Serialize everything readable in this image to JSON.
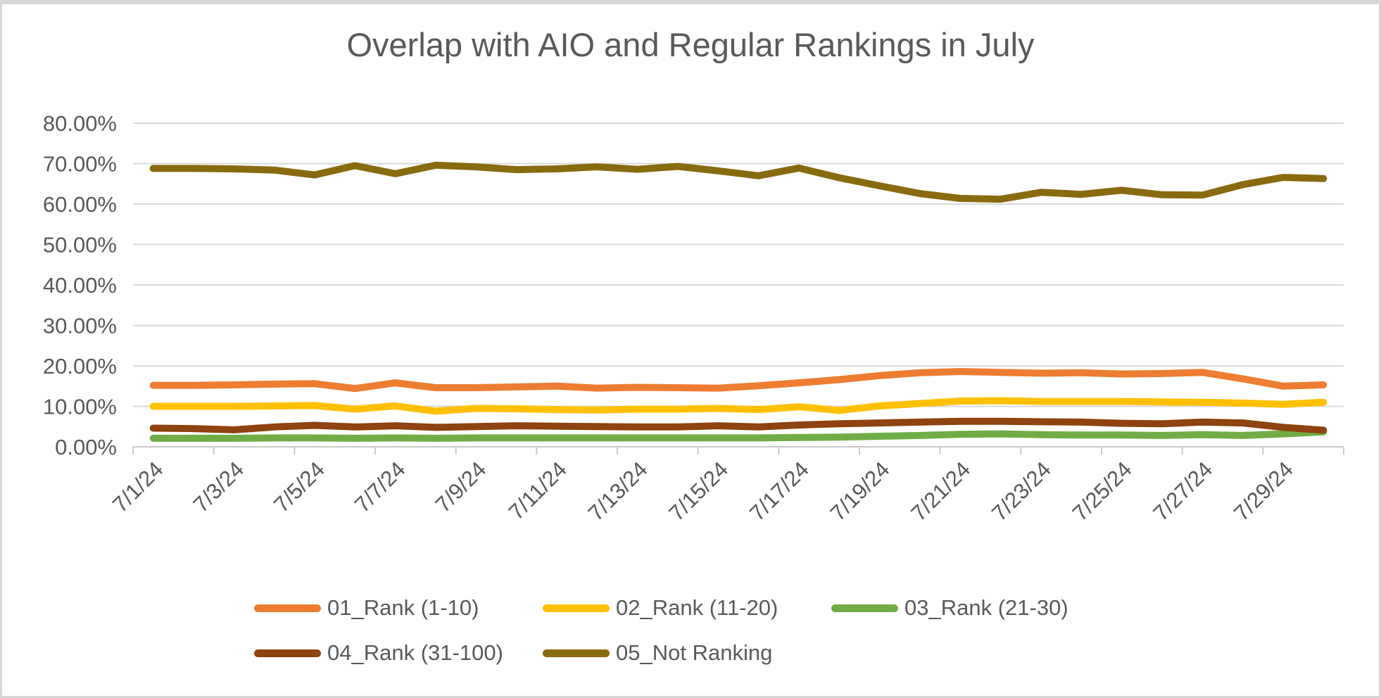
{
  "title": "Overlap with AIO and Regular Rankings in July",
  "chart_data": {
    "type": "line",
    "title": "Overlap with AIO and Regular Rankings in July",
    "x": [
      "7/1/24",
      "7/2/24",
      "7/3/24",
      "7/4/24",
      "7/5/24",
      "7/6/24",
      "7/7/24",
      "7/8/24",
      "7/9/24",
      "7/10/24",
      "7/11/24",
      "7/12/24",
      "7/13/24",
      "7/14/24",
      "7/15/24",
      "7/16/24",
      "7/17/24",
      "7/18/24",
      "7/19/24",
      "7/20/24",
      "7/21/24",
      "7/22/24",
      "7/23/24",
      "7/24/24",
      "7/25/24",
      "7/26/24",
      "7/27/24",
      "7/28/24",
      "7/29/24",
      "7/30/24"
    ],
    "x_label_interval": 2,
    "visible_x_labels": [
      "7/1/24",
      "7/3/24",
      "7/5/24",
      "7/7/24",
      "7/9/24",
      "7/11/24",
      "7/13/24",
      "7/15/24",
      "7/17/24",
      "7/19/24",
      "7/21/24",
      "7/23/24",
      "7/25/24",
      "7/27/24",
      "7/29/24"
    ],
    "y_tick_labels": [
      "0.00%",
      "10.00%",
      "20.00%",
      "30.00%",
      "40.00%",
      "50.00%",
      "60.00%",
      "70.00%",
      "80.00%"
    ],
    "ylim": [
      0,
      80
    ],
    "y_tick_step": 10,
    "y_unit": "percent",
    "grid": true,
    "legend_position": "bottom",
    "series": [
      {
        "name": "01_Rank (1-10)",
        "color": "#ED7D31",
        "values": [
          15.2,
          15.2,
          15.3,
          15.5,
          15.6,
          14.4,
          15.8,
          14.6,
          14.6,
          14.8,
          15.0,
          14.5,
          14.7,
          14.6,
          14.5,
          15.1,
          15.8,
          16.6,
          17.6,
          18.3,
          18.6,
          18.4,
          18.2,
          18.3,
          18.0,
          18.1,
          18.4,
          16.8,
          15.0,
          15.3
        ]
      },
      {
        "name": "02_Rank (11-20)",
        "color": "#FFC000",
        "values": [
          10.0,
          10.0,
          10.0,
          10.1,
          10.2,
          9.3,
          10.1,
          8.8,
          9.5,
          9.4,
          9.2,
          9.1,
          9.3,
          9.3,
          9.5,
          9.2,
          9.9,
          9.0,
          10.1,
          10.7,
          11.3,
          11.4,
          11.2,
          11.2,
          11.2,
          11.1,
          11.0,
          10.8,
          10.5,
          11.0
        ]
      },
      {
        "name": "03_Rank (21-30)",
        "color": "#70AD47",
        "values": [
          2.1,
          2.1,
          2.1,
          2.2,
          2.2,
          2.1,
          2.2,
          2.1,
          2.2,
          2.2,
          2.2,
          2.2,
          2.2,
          2.2,
          2.2,
          2.2,
          2.3,
          2.4,
          2.6,
          2.8,
          3.1,
          3.2,
          3.0,
          2.9,
          2.9,
          2.8,
          3.0,
          2.8,
          3.2,
          3.7
        ]
      },
      {
        "name": "04_Rank (31-100)",
        "color": "#8E4310",
        "values": [
          4.6,
          4.5,
          4.2,
          4.9,
          5.3,
          4.9,
          5.2,
          4.8,
          5.0,
          5.2,
          5.1,
          5.0,
          4.9,
          4.9,
          5.2,
          4.9,
          5.4,
          5.7,
          5.9,
          6.1,
          6.3,
          6.3,
          6.2,
          6.1,
          5.8,
          5.7,
          6.1,
          5.9,
          4.8,
          4.1
        ]
      },
      {
        "name": "05_Not Ranking",
        "color": "#8A6A0F",
        "values": [
          68.8,
          68.8,
          68.7,
          68.4,
          67.2,
          69.5,
          67.5,
          69.6,
          69.2,
          68.5,
          68.7,
          69.2,
          68.6,
          69.3,
          68.2,
          67.0,
          68.9,
          66.5,
          64.5,
          62.6,
          61.4,
          61.2,
          62.9,
          62.4,
          63.4,
          62.3,
          62.2,
          64.8,
          66.6,
          66.3
        ]
      }
    ],
    "colors": {
      "title_text": "#595959",
      "axis_text": "#595959",
      "gridline": "#D9D9D9",
      "axis_line": "#C9C9C9"
    }
  }
}
